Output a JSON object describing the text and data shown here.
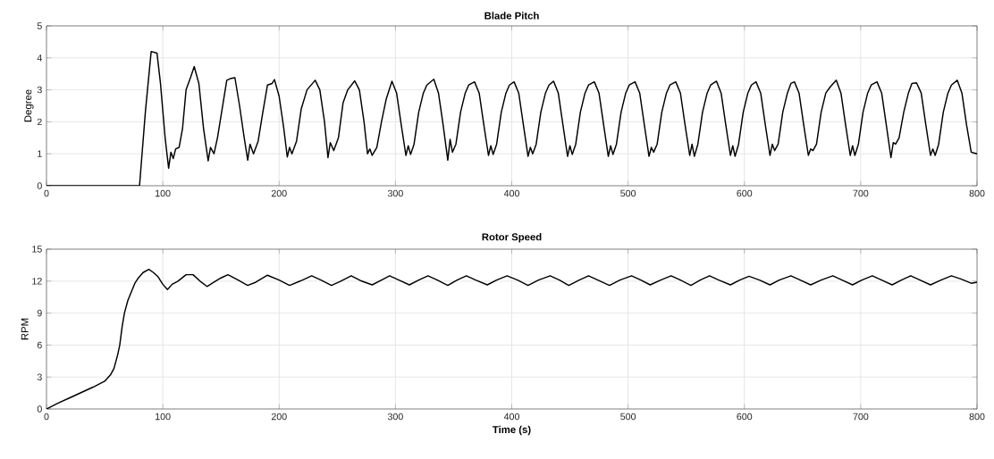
{
  "chart_data": [
    {
      "type": "line",
      "title": "Blade Pitch",
      "ylabel": "Degree",
      "xlim": [
        0,
        800
      ],
      "ylim": [
        0,
        5
      ],
      "xticks": [
        0,
        100,
        200,
        300,
        400,
        500,
        600,
        700,
        800
      ],
      "yticks": [
        0,
        1,
        2,
        3,
        4,
        5
      ],
      "grid": true,
      "color": "#000000",
      "x": [
        0,
        80,
        85,
        90,
        95,
        98,
        102,
        105,
        107,
        109,
        111,
        114,
        117,
        120,
        124,
        127,
        131,
        135,
        139,
        141,
        144,
        147,
        151,
        155,
        158,
        162,
        166,
        170,
        173,
        175,
        178,
        182,
        186,
        190,
        194,
        196,
        200,
        204,
        207,
        209,
        211,
        215,
        219,
        224,
        231,
        235,
        239,
        242,
        244,
        247,
        251,
        255,
        259,
        265,
        269,
        273,
        276,
        278,
        280,
        284,
        288,
        292,
        297,
        301,
        305,
        309,
        311,
        313,
        316,
        320,
        324,
        327,
        333,
        337,
        341,
        345,
        347,
        349,
        352,
        356,
        360,
        363,
        368,
        372,
        376,
        380,
        382,
        384,
        387,
        391,
        395,
        398,
        402,
        406,
        410,
        414,
        416,
        418,
        421,
        425,
        429,
        432,
        436,
        440,
        444,
        448,
        450,
        452,
        455,
        459,
        463,
        466,
        471,
        475,
        479,
        483,
        485,
        487,
        490,
        494,
        498,
        501,
        506,
        510,
        514,
        518,
        520,
        522,
        525,
        529,
        533,
        536,
        541,
        545,
        549,
        553,
        555,
        557,
        560,
        564,
        568,
        571,
        576,
        580,
        584,
        588,
        590,
        592,
        595,
        599,
        603,
        606,
        610,
        614,
        618,
        622,
        624,
        626,
        629,
        633,
        637,
        640,
        643,
        647,
        651,
        655,
        657,
        659,
        662,
        666,
        670,
        674,
        679,
        683,
        687,
        691,
        693,
        695,
        698,
        702,
        706,
        709,
        714,
        718,
        722,
        726,
        728,
        730,
        733,
        737,
        741,
        744,
        748,
        752,
        756,
        760,
        762,
        764,
        767,
        771,
        775,
        778,
        783,
        787,
        791,
        795,
        800
      ],
      "values": [
        0,
        0,
        2.3,
        4.2,
        4.15,
        3.2,
        1.5,
        0.55,
        1.05,
        0.85,
        1.15,
        1.2,
        1.8,
        3.0,
        3.4,
        3.73,
        3.2,
        1.8,
        0.78,
        1.2,
        1.0,
        1.5,
        2.4,
        3.3,
        3.35,
        3.38,
        2.5,
        1.5,
        0.8,
        1.3,
        1.0,
        1.4,
        2.3,
        3.15,
        3.2,
        3.32,
        2.8,
        1.8,
        0.9,
        1.2,
        1.0,
        1.4,
        2.4,
        3.0,
        3.3,
        3.0,
        2.0,
        0.88,
        1.35,
        1.1,
        1.5,
        2.6,
        3.0,
        3.28,
        3.0,
        2.0,
        1.0,
        1.15,
        0.95,
        1.2,
        2.0,
        2.7,
        3.27,
        2.9,
        1.9,
        0.95,
        1.25,
        0.98,
        1.3,
        2.3,
        2.9,
        3.15,
        3.33,
        2.9,
        1.9,
        0.8,
        1.45,
        1.05,
        1.3,
        2.3,
        2.9,
        3.15,
        3.25,
        2.9,
        1.9,
        0.95,
        1.25,
        0.98,
        1.3,
        2.3,
        2.9,
        3.15,
        3.25,
        2.9,
        1.9,
        0.92,
        1.2,
        1.0,
        1.3,
        2.3,
        2.9,
        3.15,
        3.27,
        2.9,
        1.9,
        0.92,
        1.25,
        0.98,
        1.3,
        2.3,
        2.9,
        3.15,
        3.25,
        2.9,
        1.9,
        0.92,
        1.25,
        0.98,
        1.3,
        2.3,
        2.9,
        3.15,
        3.25,
        2.9,
        1.9,
        0.92,
        1.2,
        1.05,
        1.3,
        2.3,
        2.9,
        3.15,
        3.25,
        2.9,
        1.9,
        0.95,
        1.3,
        0.92,
        1.3,
        2.3,
        2.9,
        3.15,
        3.27,
        2.9,
        1.9,
        0.95,
        1.25,
        0.92,
        1.3,
        2.3,
        2.9,
        3.15,
        3.25,
        2.9,
        1.9,
        0.95,
        1.3,
        1.1,
        1.3,
        2.3,
        2.9,
        3.2,
        3.25,
        2.9,
        1.9,
        0.95,
        1.15,
        1.1,
        1.3,
        2.3,
        2.9,
        3.1,
        3.3,
        2.9,
        1.9,
        0.95,
        1.25,
        0.95,
        1.3,
        2.3,
        2.9,
        3.15,
        3.25,
        2.9,
        1.9,
        0.88,
        1.35,
        1.3,
        1.5,
        2.3,
        2.9,
        3.2,
        3.22,
        2.9,
        1.9,
        0.95,
        1.15,
        0.95,
        1.3,
        2.3,
        2.9,
        3.15,
        3.3,
        2.9,
        1.9,
        1.05,
        1.0
      ]
    },
    {
      "type": "line",
      "title": "Rotor Speed",
      "xlabel": "Time (s)",
      "ylabel": "RPM",
      "xlim": [
        0,
        800
      ],
      "ylim": [
        0,
        15
      ],
      "xticks": [
        0,
        100,
        200,
        300,
        400,
        500,
        600,
        700,
        800
      ],
      "yticks": [
        0,
        3,
        6,
        9,
        12,
        15
      ],
      "grid": true,
      "color": "#000000",
      "x": [
        0,
        10,
        20,
        30,
        40,
        50,
        55,
        58,
        61,
        63,
        65,
        67,
        70,
        73,
        76,
        79,
        83,
        88,
        92,
        96,
        100,
        104,
        108,
        113,
        120,
        126,
        132,
        138,
        144,
        150,
        156,
        163,
        173,
        180,
        190,
        200,
        209,
        218,
        228,
        236,
        245,
        253,
        262,
        271,
        280,
        288,
        295,
        303,
        312,
        320,
        328,
        336,
        345,
        353,
        361,
        369,
        379,
        387,
        396,
        405,
        414,
        423,
        433,
        441,
        449,
        458,
        466,
        474,
        484,
        493,
        503,
        511,
        519,
        528,
        537,
        545,
        554,
        562,
        570,
        578,
        588,
        596,
        604,
        613,
        622,
        630,
        640,
        648,
        657,
        666,
        676,
        684,
        693,
        701,
        710,
        718,
        727,
        735,
        743,
        751,
        760,
        769,
        778,
        786,
        795,
        800
      ],
      "values": [
        0,
        0.55,
        1.05,
        1.55,
        2.05,
        2.6,
        3.2,
        3.8,
        5.0,
        6.0,
        7.7,
        9.0,
        10.2,
        11.0,
        11.8,
        12.3,
        12.8,
        13.1,
        12.8,
        12.4,
        11.7,
        11.2,
        11.7,
        12.0,
        12.6,
        12.6,
        12.0,
        11.5,
        11.9,
        12.3,
        12.6,
        12.2,
        11.6,
        11.9,
        12.55,
        12.1,
        11.6,
        12.0,
        12.5,
        12.1,
        11.6,
        12.0,
        12.5,
        12.0,
        11.65,
        12.1,
        12.5,
        12.1,
        11.65,
        12.1,
        12.5,
        12.1,
        11.6,
        12.1,
        12.5,
        12.1,
        11.65,
        12.1,
        12.5,
        12.1,
        11.6,
        12.1,
        12.5,
        12.1,
        11.6,
        12.1,
        12.5,
        12.1,
        11.6,
        12.1,
        12.5,
        12.1,
        11.65,
        12.1,
        12.5,
        12.1,
        11.6,
        12.1,
        12.5,
        12.1,
        11.65,
        12.1,
        12.45,
        12.1,
        11.65,
        12.1,
        12.5,
        12.1,
        11.65,
        12.1,
        12.5,
        12.1,
        11.65,
        12.1,
        12.5,
        12.1,
        11.65,
        12.1,
        12.5,
        12.1,
        11.65,
        12.1,
        12.5,
        12.2,
        11.8,
        11.9
      ]
    }
  ]
}
